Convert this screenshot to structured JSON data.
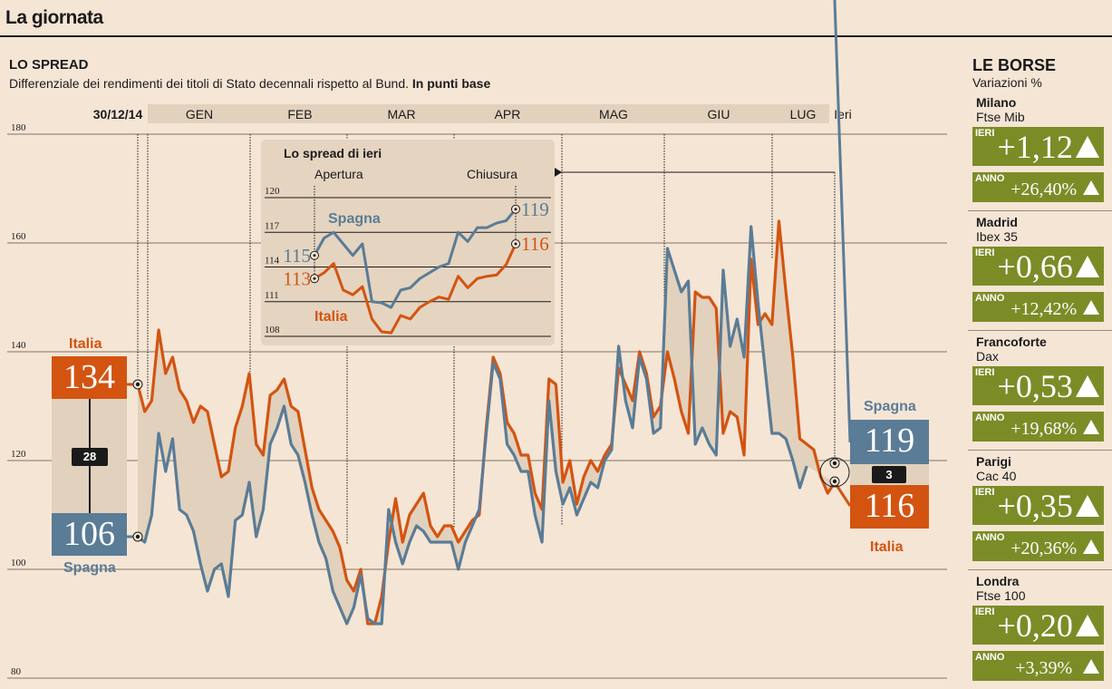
{
  "header": {
    "title": "La giornata"
  },
  "spread": {
    "title": "LO SPREAD",
    "subtitle": "Differenziale dei rendimenti dei titoli di Stato decennali rispetto al Bund.",
    "unit": "In punti base"
  },
  "colors": {
    "italia": "#d35411",
    "spagna": "#5a7c96",
    "fill": "#e2d1bc",
    "background": "#f5e5d5",
    "borse_green": "#7b8c27"
  },
  "chart_data": [
    {
      "type": "line",
      "x_labels": [
        "30/12/14",
        "GEN",
        "FEB",
        "MAR",
        "APR",
        "MAG",
        "GIU",
        "LUG",
        "Ieri"
      ],
      "ylim": [
        80,
        180
      ],
      "yticks": [
        180,
        160,
        140,
        120,
        100,
        80
      ],
      "grid": true,
      "series": [
        {
          "name": "Italia",
          "values": [
            134,
            129,
            131,
            144,
            136,
            139,
            133,
            131,
            127,
            130,
            129,
            123,
            117,
            118,
            126,
            130,
            136,
            123,
            121,
            132,
            133,
            135,
            130,
            129,
            122,
            115,
            111,
            109,
            107,
            104,
            98,
            96,
            100,
            90,
            90,
            95,
            105,
            113,
            105,
            110,
            112,
            114,
            108,
            106,
            108,
            108,
            105,
            107,
            109,
            110,
            126,
            139,
            136,
            127,
            125,
            121,
            121,
            114,
            111,
            135,
            134,
            116,
            120,
            112,
            117,
            120,
            118,
            121,
            123,
            137,
            134,
            131,
            140,
            136,
            128,
            130,
            140,
            135,
            129,
            125,
            151,
            150,
            150,
            148,
            125,
            129,
            128,
            121,
            157,
            145,
            147,
            145,
            164,
            151,
            139,
            124,
            123,
            122,
            117,
            114,
            116
          ]
        },
        {
          "name": "Spagna",
          "values": [
            106,
            105,
            110,
            125,
            118,
            124,
            111,
            110,
            107,
            101,
            96,
            100,
            101,
            95,
            109,
            110,
            116,
            106,
            111,
            123,
            126,
            130,
            123,
            121,
            116,
            110,
            105,
            102,
            96,
            93,
            90,
            93,
            99,
            91,
            90,
            90,
            111,
            105,
            101,
            105,
            108,
            107,
            105,
            105,
            105,
            105,
            100,
            105,
            108,
            111,
            125,
            138,
            135,
            123,
            121,
            118,
            118,
            110,
            105,
            131,
            118,
            112,
            115,
            110,
            113,
            116,
            115,
            120,
            122,
            141,
            131,
            126,
            139,
            135,
            125,
            126,
            159,
            155,
            151,
            153,
            123,
            126,
            123,
            121,
            155,
            141,
            146,
            139,
            163,
            149,
            137,
            125,
            125,
            124,
            120,
            115,
            119
          ]
        }
      ],
      "start_values": {
        "italia": "134",
        "spagna": "106",
        "diff": "28",
        "italia_label": "Italia",
        "spagna_label": "Spagna"
      },
      "end_values": {
        "italia": "116",
        "spagna": "119",
        "diff": "3",
        "italia_label": "Italia",
        "spagna_label": "Spagna"
      }
    },
    {
      "type": "line",
      "title": "Lo spread di ieri",
      "x_labels": [
        "Apertura",
        "Chiusura"
      ],
      "ylim": [
        108,
        120
      ],
      "yticks": [
        120,
        117,
        114,
        111,
        108
      ],
      "series": [
        {
          "name": "Spagna",
          "values": [
            115,
            116.5,
            117,
            116,
            115,
            116,
            111,
            110.9,
            110.5,
            112,
            112.2,
            113,
            113.5,
            114,
            114.3,
            117,
            116.2,
            117.4,
            117.4,
            117.8,
            118,
            119
          ]
        },
        {
          "name": "Italia",
          "values": [
            113,
            113.5,
            114.3,
            112,
            111.6,
            112.3,
            109.5,
            108.4,
            108.3,
            109.8,
            109.5,
            110.5,
            111,
            111.4,
            111.2,
            113.2,
            112.2,
            113,
            113.2,
            113.3,
            114.2,
            116
          ]
        }
      ],
      "labels": {
        "spagna_open": "115",
        "italia_open": "113",
        "spagna_close": "119",
        "italia_close": "116"
      }
    }
  ],
  "borse": {
    "title": "LE BORSE",
    "subtitle": "Variazioni %",
    "ieri_tag": "IERI",
    "anno_tag": "ANNO",
    "markets": [
      {
        "city": "Milano",
        "index": "Ftse Mib",
        "ieri": "+1,12",
        "anno": "+26,40%",
        "trend": "up"
      },
      {
        "city": "Madrid",
        "index": "Ibex 35",
        "ieri": "+0,66",
        "anno": "+12,42%",
        "trend": "up"
      },
      {
        "city": "Francoforte",
        "index": "Dax",
        "ieri": "+0,53",
        "anno": "+19,68%",
        "trend": "up"
      },
      {
        "city": "Parigi",
        "index": "Cac 40",
        "ieri": "+0,35",
        "anno": "+20,36%",
        "trend": "up"
      },
      {
        "city": "Londra",
        "index": "Ftse 100",
        "ieri": "+0,20",
        "anno": "+3,39%",
        "trend": "up"
      }
    ]
  }
}
